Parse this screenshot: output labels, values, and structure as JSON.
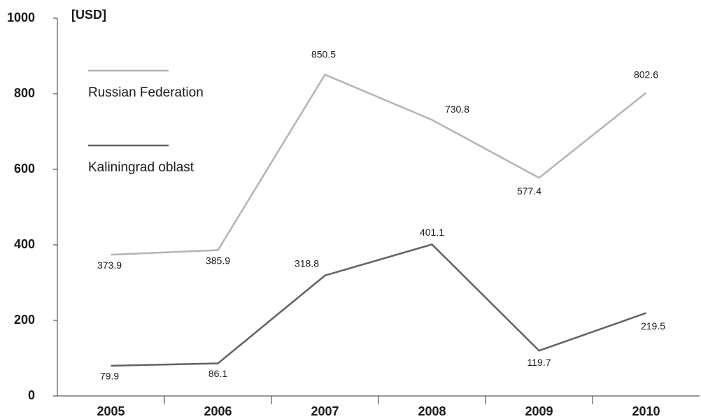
{
  "chart_data": {
    "type": "line",
    "y_label": "[USD]",
    "categories": [
      "2005",
      "2006",
      "2007",
      "2008",
      "2009",
      "2010"
    ],
    "series": [
      {
        "name": "Russian Federation",
        "color": "#b4b4b4",
        "values": [
          373.9,
          385.9,
          850.5,
          730.8,
          577.4,
          802.6
        ]
      },
      {
        "name": "Kaliningrad oblast",
        "color": "#626262",
        "values": [
          79.9,
          86.1,
          318.8,
          401.1,
          119.7,
          219.5
        ]
      }
    ],
    "ylim": [
      0,
      1000
    ],
    "yticks": [
      0,
      200,
      400,
      600,
      800,
      1000
    ],
    "legend": "upper-left"
  }
}
